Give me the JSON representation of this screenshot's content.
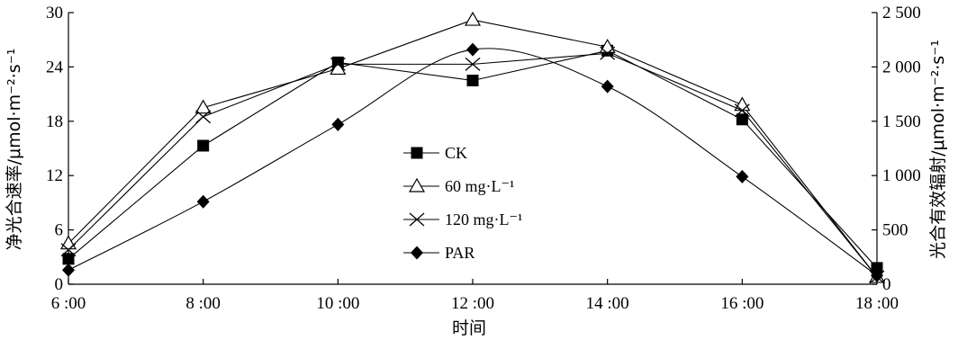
{
  "chart_data": {
    "type": "line",
    "x_categories": [
      "6 :00",
      "8 :00",
      "10 :00",
      "12 :00",
      "14 :00",
      "16 :00",
      "18 :00"
    ],
    "x_values": [
      6,
      8,
      10,
      12,
      14,
      16,
      18
    ],
    "xlabel": "时间",
    "ylabel_left": "净光合速率/μmol·m⁻²·s⁻¹",
    "ylabel_right": "光合有效辐射/μmol·m⁻²·s⁻¹",
    "ylim_left": [
      0,
      30
    ],
    "ylim_right": [
      0,
      2500
    ],
    "yticks_left": [
      0,
      6,
      12,
      18,
      24,
      30
    ],
    "yticks_left_labels": [
      "0",
      "6",
      "12",
      "18",
      "24",
      "30"
    ],
    "yticks_right": [
      0,
      500,
      1000,
      1500,
      2000,
      2500
    ],
    "yticks_right_labels": [
      "0",
      "500",
      "1 000",
      "1 500",
      "2 000",
      "2 500"
    ],
    "grid": false,
    "legend_position": "center",
    "series": [
      {
        "name": "CK",
        "marker": "filled-square",
        "axis": "left",
        "x": [
          6,
          8,
          10,
          12,
          14,
          16,
          18
        ],
        "values": [
          2.8,
          15.3,
          24.5,
          22.5,
          25.8,
          18.2,
          1.8
        ]
      },
      {
        "name": "60 mg·L⁻¹",
        "marker": "open-triangle",
        "axis": "left",
        "x": [
          6,
          8,
          10,
          12,
          14,
          16,
          18
        ],
        "values": [
          4.5,
          19.5,
          23.8,
          29.2,
          26.2,
          19.8,
          0.8
        ]
      },
      {
        "name": "120 mg·L⁻¹",
        "marker": "x-cross",
        "axis": "left",
        "x": [
          6,
          8,
          10,
          12,
          14,
          16,
          18
        ],
        "values": [
          3.8,
          18.5,
          24.3,
          24.3,
          25.5,
          19.2,
          0.8
        ]
      },
      {
        "name": "PAR",
        "marker": "filled-diamond",
        "axis": "right",
        "x": [
          6,
          8,
          10,
          12,
          14,
          16,
          18
        ],
        "values": [
          130,
          760,
          1470,
          2160,
          1820,
          990,
          80
        ],
        "smooth_curve": true
      }
    ]
  }
}
